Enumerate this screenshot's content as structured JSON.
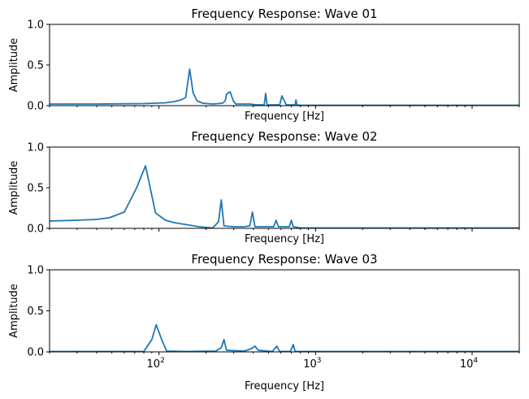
{
  "colors": {
    "line": "#1f77b4",
    "axes": "#000000",
    "background": "#ffffff"
  },
  "chart_data": [
    {
      "type": "line",
      "title": "Frequency Response: Wave 01",
      "xlabel": "Frequency [Hz]",
      "ylabel": "Amplitude",
      "xscale": "log",
      "xlim": [
        20,
        20000
      ],
      "ylim": [
        0,
        1
      ],
      "yticks": [
        "0.0",
        "0.5",
        "1.0"
      ],
      "xticklabels_visible": false,
      "grid": false,
      "x": [
        20,
        40,
        80,
        110,
        125,
        138,
        148,
        157,
        165,
        175,
        190,
        220,
        255,
        265,
        270,
        278,
        285,
        298,
        310,
        322,
        335,
        350,
        380,
        420,
        470,
        480,
        490,
        500,
        530,
        560,
        590,
        610,
        650,
        700,
        740,
        750,
        760,
        800,
        900,
        1000,
        2000,
        5000,
        10000,
        20000
      ],
      "y": [
        0.02,
        0.02,
        0.025,
        0.035,
        0.05,
        0.07,
        0.1,
        0.45,
        0.16,
        0.06,
        0.03,
        0.02,
        0.03,
        0.06,
        0.14,
        0.16,
        0.17,
        0.06,
        0.02,
        0.02,
        0.02,
        0.02,
        0.02,
        0.01,
        0.01,
        0.15,
        0.01,
        0.01,
        0.01,
        0.01,
        0.01,
        0.12,
        0.01,
        0.01,
        0.01,
        0.07,
        0.01,
        0.005,
        0.005,
        0.005,
        0.005,
        0.005,
        0.005,
        0.005
      ]
    },
    {
      "type": "line",
      "title": "Frequency Response: Wave 02",
      "xlabel": "Frequency [Hz]",
      "ylabel": "Amplitude",
      "xscale": "log",
      "xlim": [
        20,
        20000
      ],
      "ylim": [
        0,
        1
      ],
      "yticks": [
        "0.0",
        "0.5",
        "1.0"
      ],
      "xticklabels_visible": false,
      "grid": false,
      "x": [
        20,
        30,
        40,
        48,
        60,
        72,
        82,
        95,
        110,
        125,
        145,
        180,
        220,
        240,
        250,
        260,
        300,
        350,
        380,
        395,
        410,
        480,
        540,
        560,
        580,
        620,
        680,
        700,
        720,
        800,
        1000,
        2000,
        20000
      ],
      "y": [
        0.09,
        0.1,
        0.11,
        0.13,
        0.2,
        0.5,
        0.77,
        0.19,
        0.1,
        0.07,
        0.05,
        0.02,
        0.005,
        0.08,
        0.35,
        0.03,
        0.02,
        0.02,
        0.03,
        0.2,
        0.02,
        0.02,
        0.02,
        0.1,
        0.02,
        0.02,
        0.02,
        0.1,
        0.02,
        0.005,
        0.005,
        0.005,
        0.005
      ]
    },
    {
      "type": "line",
      "title": "Frequency Response: Wave 03",
      "xlabel": "Frequency [Hz]",
      "ylabel": "Amplitude",
      "xscale": "log",
      "xlim": [
        20,
        20000
      ],
      "ylim": [
        0,
        1
      ],
      "yticks": [
        "0.0",
        "0.5",
        "1.0"
      ],
      "xticks": [
        {
          "base": "10",
          "exp": "2"
        },
        {
          "base": "10",
          "exp": "3"
        },
        {
          "base": "10",
          "exp": "4"
        }
      ],
      "xticklabels_visible": true,
      "grid": false,
      "x": [
        20,
        50,
        80,
        90,
        96,
        104,
        112,
        150,
        230,
        250,
        260,
        270,
        350,
        390,
        410,
        430,
        530,
        565,
        590,
        690,
        720,
        740,
        800,
        1000,
        20000
      ],
      "y": [
        0.005,
        0.005,
        0.005,
        0.15,
        0.33,
        0.15,
        0.01,
        0.005,
        0.01,
        0.05,
        0.15,
        0.02,
        0.01,
        0.04,
        0.07,
        0.02,
        0.005,
        0.07,
        0.005,
        0.005,
        0.09,
        0.005,
        0.005,
        0.005,
        0.005
      ]
    }
  ]
}
